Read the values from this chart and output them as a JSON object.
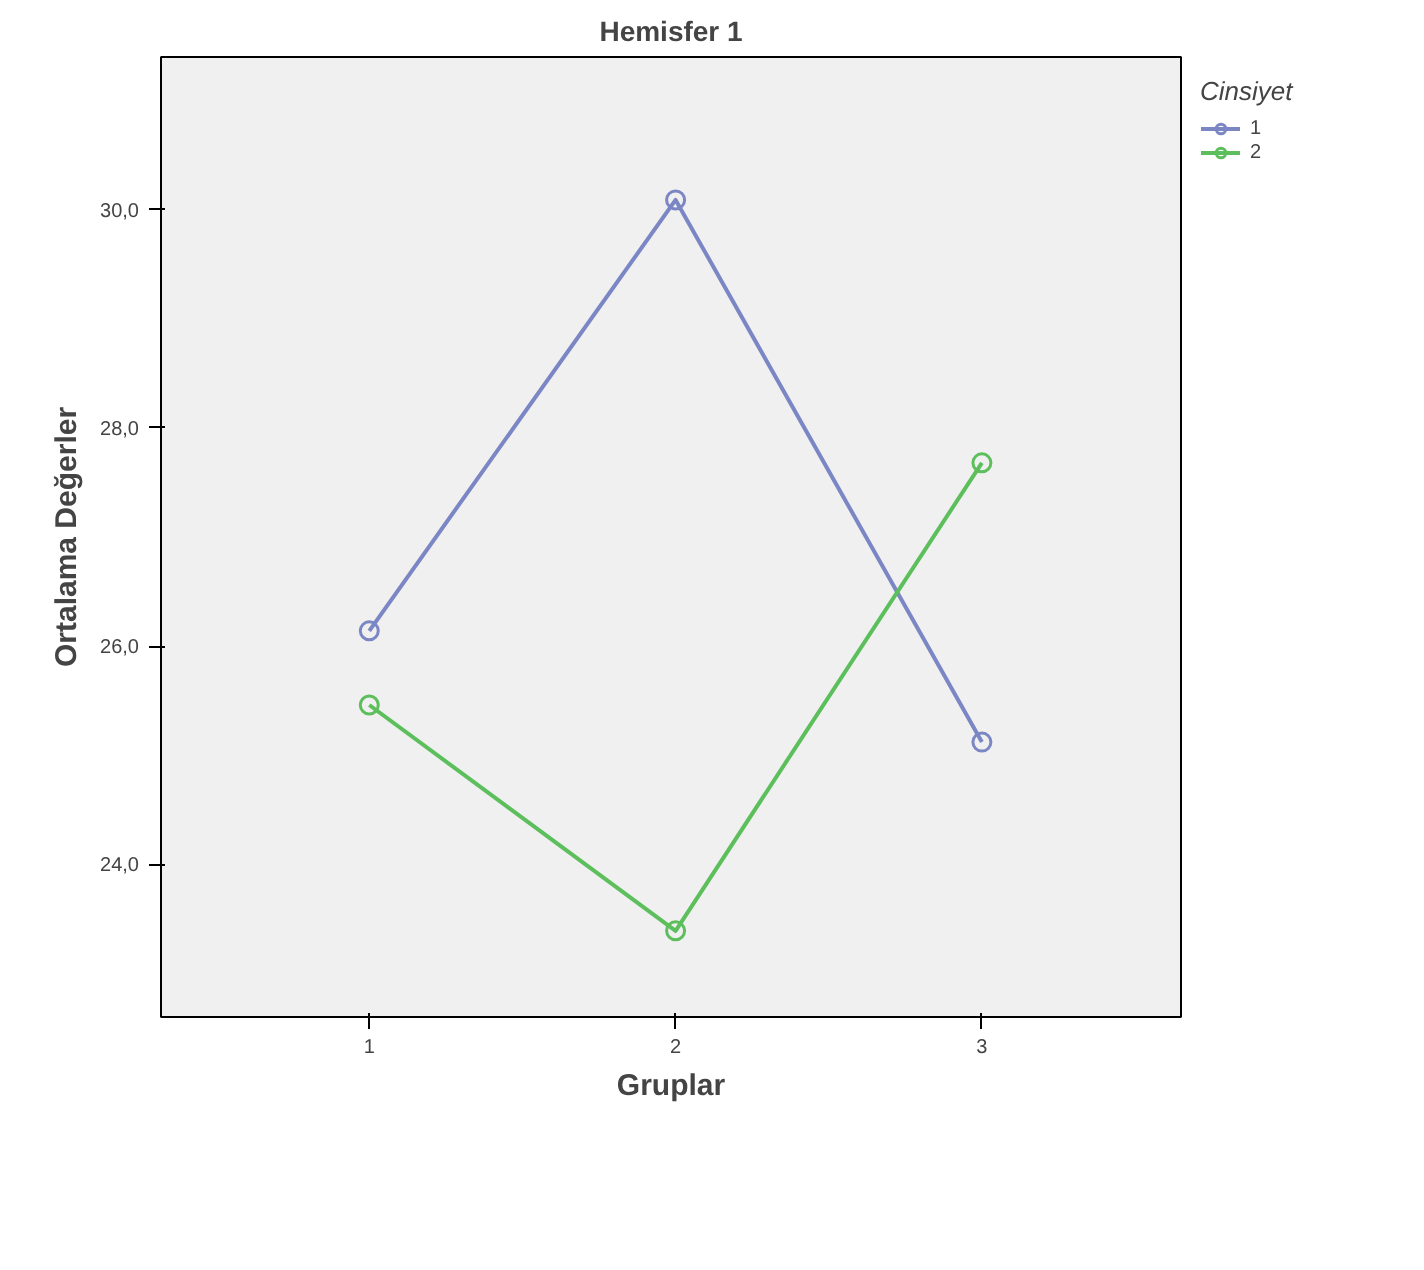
{
  "chart_data": {
    "type": "line",
    "title": "Hemisfer 1",
    "xlabel": "Gruplar",
    "ylabel": "Ortalama Değerler",
    "legend_title": "Cinsiyet",
    "categories": [
      "1",
      "2",
      "3"
    ],
    "series": [
      {
        "name": "1",
        "color": "#7b86c4",
        "values": [
          26.14,
          30.09,
          25.12
        ]
      },
      {
        "name": "2",
        "color": "#5cbf5c",
        "values": [
          25.46,
          23.39,
          27.68
        ]
      }
    ],
    "ylim": [
      22.6,
      31.4
    ],
    "yticks": [
      {
        "value": 24,
        "label": "24,0"
      },
      {
        "value": 26,
        "label": "26,0"
      },
      {
        "value": 28,
        "label": "28,0"
      },
      {
        "value": 30,
        "label": "30,0"
      }
    ],
    "grid": false,
    "legend": "top right",
    "marker": "circle",
    "line_style": "solid"
  }
}
